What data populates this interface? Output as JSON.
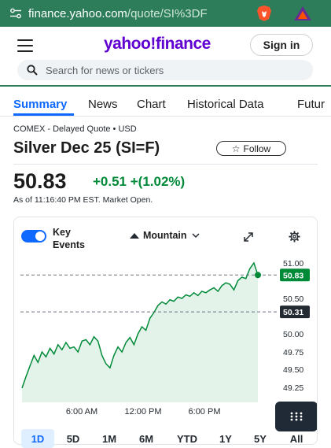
{
  "browser": {
    "url_host": "finance.yahoo.com",
    "url_path": "/quote/SI%3DF"
  },
  "header": {
    "logo": "yahoo!finance",
    "signin_label": "Sign in",
    "search_placeholder": "Search for news or tickers"
  },
  "tabs": [
    "Summary",
    "News",
    "Chart",
    "Historical Data",
    "Futur"
  ],
  "quote": {
    "source": "COMEX - Delayed Quote • USD",
    "title": "Silver Dec 25 (SI=F)",
    "follow_label": "Follow",
    "price": "50.83",
    "change": "+0.51 +(1.02%)",
    "as_of": "As of 11:16:40 PM EST. Market Open."
  },
  "chart_controls": {
    "key_events_label": "Key Events",
    "chart_type_label": "Mountain"
  },
  "chart_data": {
    "type": "area",
    "y_ticks": [
      "51.00",
      "50.50",
      "50.00",
      "49.75",
      "49.50",
      "49.25"
    ],
    "x_ticks": [
      "6:00 AM",
      "12:00 PM",
      "6:00 PM"
    ],
    "current_price_label": "50.83",
    "prev_close_label": "50.31",
    "line_color": "#008a38",
    "fill_color": "#e3f3ea",
    "values": [
      49.24,
      49.4,
      49.55,
      49.7,
      49.6,
      49.75,
      49.68,
      49.8,
      49.72,
      49.85,
      49.78,
      49.88,
      49.8,
      49.82,
      49.75,
      49.9,
      49.92,
      49.85,
      49.96,
      49.9,
      49.7,
      49.58,
      49.52,
      49.7,
      49.82,
      49.75,
      49.88,
      49.95,
      49.85,
      50.0,
      50.1,
      50.05,
      50.22,
      50.3,
      50.4,
      50.45,
      50.42,
      50.48,
      50.46,
      50.52,
      50.5,
      50.55,
      50.53,
      50.58,
      50.54,
      50.6,
      50.58,
      50.62,
      50.65,
      50.6,
      50.68,
      50.72,
      50.7,
      50.62,
      50.75,
      50.8,
      50.78,
      50.92,
      51.0,
      50.83
    ]
  },
  "ranges": [
    "1D",
    "5D",
    "1M",
    "6M",
    "YTD",
    "1Y",
    "5Y",
    "All"
  ],
  "colors": {
    "browser_bar": "#2d7d5a",
    "brand_purple": "#6001d2",
    "accent_blue": "#0f69ff",
    "positive_green": "#008a38"
  }
}
